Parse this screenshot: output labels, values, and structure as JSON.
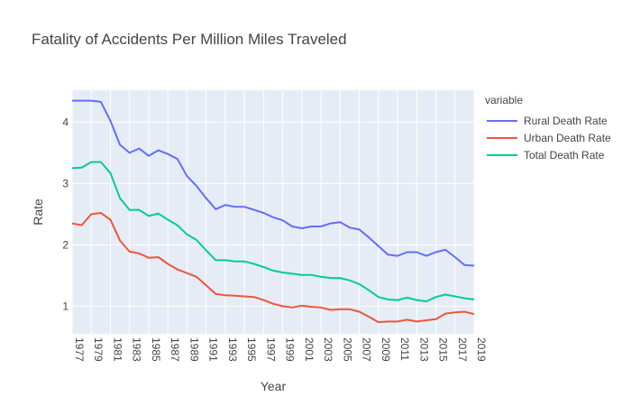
{
  "chart_data": {
    "type": "line",
    "title": "Fatality of Accidents Per Million Miles Traveled",
    "xlabel": "Year",
    "ylabel": "Rate",
    "legend_title": "variable",
    "legend_position": "right",
    "grid": true,
    "xlim": [
      1977,
      2019
    ],
    "ylim": [
      0.55,
      4.52
    ],
    "x_ticks": [
      "1977",
      "1979",
      "1981",
      "1983",
      "1985",
      "1987",
      "1989",
      "1991",
      "1993",
      "1995",
      "1997",
      "1999",
      "2001",
      "2003",
      "2005",
      "2007",
      "2009",
      "2011",
      "2013",
      "2015",
      "2017",
      "2019"
    ],
    "y_ticks": [
      "1",
      "2",
      "3",
      "4"
    ],
    "x": [
      1977,
      1978,
      1979,
      1980,
      1981,
      1982,
      1983,
      1984,
      1985,
      1986,
      1987,
      1988,
      1989,
      1990,
      1991,
      1992,
      1993,
      1994,
      1995,
      1996,
      1997,
      1998,
      1999,
      2000,
      2001,
      2002,
      2003,
      2004,
      2005,
      2006,
      2007,
      2008,
      2009,
      2010,
      2011,
      2012,
      2013,
      2014,
      2015,
      2016,
      2017,
      2018,
      2019
    ],
    "series": [
      {
        "name": "Rural Death Rate",
        "color": "#636efa",
        "values": [
          4.35,
          4.35,
          4.35,
          4.33,
          4.02,
          3.63,
          3.5,
          3.57,
          3.45,
          3.54,
          3.48,
          3.4,
          3.12,
          2.96,
          2.76,
          2.58,
          2.65,
          2.62,
          2.62,
          2.57,
          2.52,
          2.45,
          2.4,
          2.3,
          2.27,
          2.3,
          2.3,
          2.35,
          2.37,
          2.28,
          2.25,
          2.12,
          1.98,
          1.84,
          1.82,
          1.88,
          1.88,
          1.82,
          1.88,
          1.92,
          1.8,
          1.67,
          1.66
        ]
      },
      {
        "name": "Urban Death Rate",
        "color": "#ef553b",
        "values": [
          2.35,
          2.32,
          2.5,
          2.52,
          2.41,
          2.07,
          1.89,
          1.86,
          1.79,
          1.8,
          1.69,
          1.6,
          1.54,
          1.48,
          1.34,
          1.2,
          1.18,
          1.17,
          1.16,
          1.15,
          1.1,
          1.04,
          1.0,
          0.98,
          1.01,
          0.99,
          0.98,
          0.94,
          0.95,
          0.95,
          0.91,
          0.83,
          0.74,
          0.75,
          0.75,
          0.78,
          0.75,
          0.77,
          0.79,
          0.88,
          0.9,
          0.91,
          0.87
        ]
      },
      {
        "name": "Total Death Rate",
        "color": "#00cc96",
        "values": [
          3.25,
          3.26,
          3.35,
          3.35,
          3.17,
          2.76,
          2.57,
          2.57,
          2.47,
          2.51,
          2.41,
          2.32,
          2.17,
          2.08,
          1.91,
          1.75,
          1.75,
          1.73,
          1.73,
          1.69,
          1.64,
          1.58,
          1.55,
          1.53,
          1.51,
          1.51,
          1.48,
          1.46,
          1.46,
          1.42,
          1.36,
          1.26,
          1.15,
          1.11,
          1.1,
          1.14,
          1.1,
          1.08,
          1.15,
          1.19,
          1.16,
          1.13,
          1.11
        ]
      }
    ]
  }
}
